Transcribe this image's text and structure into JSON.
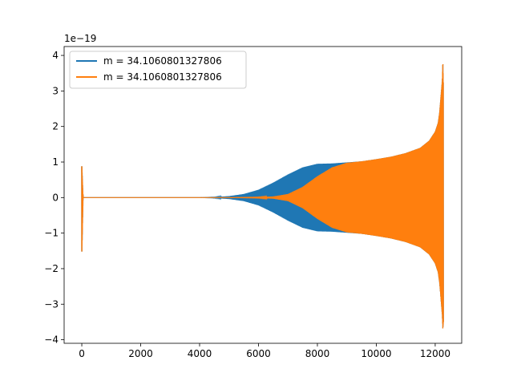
{
  "chart_data": {
    "type": "line",
    "title": "",
    "xlabel": "",
    "ylabel": "",
    "offset_text": "1e−19",
    "xlim": [
      -600,
      12900
    ],
    "ylim": [
      -4.1,
      4.25
    ],
    "xticks": [
      0,
      2000,
      4000,
      6000,
      8000,
      10000,
      12000
    ],
    "xtick_labels": [
      "0",
      "2000",
      "4000",
      "6000",
      "8000",
      "10000",
      "12000"
    ],
    "yticks": [
      -4,
      -3,
      -2,
      -1,
      0,
      1,
      2,
      3,
      4
    ],
    "ytick_labels": [
      "−4",
      "−3",
      "−2",
      "−1",
      "0",
      "1",
      "2",
      "3",
      "4"
    ],
    "grid": false,
    "legend_position": "top-left",
    "series": [
      {
        "name": "m = 34.1060801327806",
        "color": "#1f77b4",
        "envelope_x": [
          0,
          40,
          60,
          200,
          4000,
          4500,
          5000,
          5500,
          6000,
          6500,
          7000,
          7500,
          8000,
          8500,
          9000,
          9500,
          10000,
          10500,
          11000,
          11500,
          11800,
          12000,
          12100,
          12150,
          12200,
          12240,
          12260,
          12280
        ],
        "envelope_upper": [
          0.88,
          0.0,
          0.0,
          0.0,
          0.0,
          0.01,
          0.04,
          0.1,
          0.22,
          0.42,
          0.65,
          0.85,
          0.95,
          0.96,
          0.99,
          1.02,
          1.08,
          1.15,
          1.25,
          1.4,
          1.6,
          1.85,
          2.1,
          2.4,
          2.9,
          3.3,
          3.85,
          3.1
        ],
        "envelope_lower": [
          -1.6,
          0.0,
          0.0,
          0.0,
          0.0,
          -0.01,
          -0.04,
          -0.1,
          -0.22,
          -0.42,
          -0.65,
          -0.85,
          -0.95,
          -0.96,
          -0.99,
          -1.02,
          -1.08,
          -1.15,
          -1.25,
          -1.4,
          -1.6,
          -1.85,
          -2.1,
          -2.4,
          -2.9,
          -3.3,
          -3.7,
          -3.5
        ]
      },
      {
        "name": "m = 34.1060801327806",
        "color": "#ff7f0e",
        "envelope_x": [
          0,
          40,
          60,
          200,
          5000,
          6000,
          6500,
          7000,
          7500,
          8000,
          8500,
          9000,
          9500,
          10000,
          10500,
          11000,
          11500,
          11800,
          12000,
          12100,
          12150,
          12200,
          12240,
          12260,
          12280
        ],
        "envelope_upper": [
          0.88,
          0.0,
          0.0,
          0.0,
          0.0,
          0.01,
          0.03,
          0.1,
          0.3,
          0.6,
          0.85,
          0.98,
          1.02,
          1.08,
          1.15,
          1.25,
          1.4,
          1.6,
          1.85,
          2.1,
          2.4,
          2.9,
          3.3,
          3.85,
          3.1
        ],
        "envelope_lower": [
          -1.6,
          0.0,
          0.0,
          0.0,
          0.0,
          -0.01,
          -0.03,
          -0.1,
          -0.3,
          -0.6,
          -0.85,
          -0.98,
          -1.02,
          -1.08,
          -1.15,
          -1.25,
          -1.4,
          -1.6,
          -1.85,
          -2.1,
          -2.4,
          -2.9,
          -3.3,
          -3.7,
          -3.5
        ]
      }
    ]
  }
}
